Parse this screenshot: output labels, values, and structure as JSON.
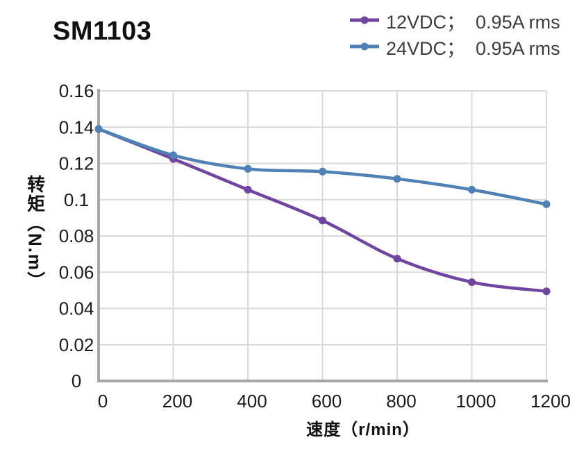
{
  "page": {
    "title": "SM1103"
  },
  "chart_data": {
    "type": "line",
    "title": "SM1103",
    "x": [
      0,
      200,
      400,
      600,
      800,
      1000,
      1200
    ],
    "series": [
      {
        "name": "12VDC；  0.95A rms",
        "color": "#7045A2",
        "values": [
          0.139,
          0.1225,
          0.1055,
          0.0885,
          0.0675,
          0.0545,
          0.0495
        ]
      },
      {
        "name": "24VDC；  0.95A rms",
        "color": "#4F81B6",
        "values": [
          0.139,
          0.1245,
          0.117,
          0.1155,
          0.1115,
          0.1055,
          0.0975
        ]
      }
    ],
    "xlabel": "速度（r/min）",
    "ylabel": "转矩（N.m）",
    "xlim": [
      0,
      1200
    ],
    "ylim": [
      0,
      0.16
    ],
    "xticks": [
      0,
      200,
      400,
      600,
      800,
      1000,
      1200
    ],
    "yticks": [
      0,
      0.02,
      0.04,
      0.06,
      0.08,
      0.1,
      0.12,
      0.14,
      0.16
    ],
    "grid": true,
    "legend_position": "top-right",
    "line_smooth": true,
    "marker": "circle"
  },
  "style": {
    "background": "#FFFFFF",
    "grid_color": "#D9D9D9",
    "axis_color": "#A6A6A6",
    "tick_label_color": "#1A1A1A",
    "title_color": "#111111",
    "legend_text_color": "#3D3D3D",
    "axis_title_color": "#111111",
    "line_width": 4.5,
    "marker_radius": 5.5
  }
}
